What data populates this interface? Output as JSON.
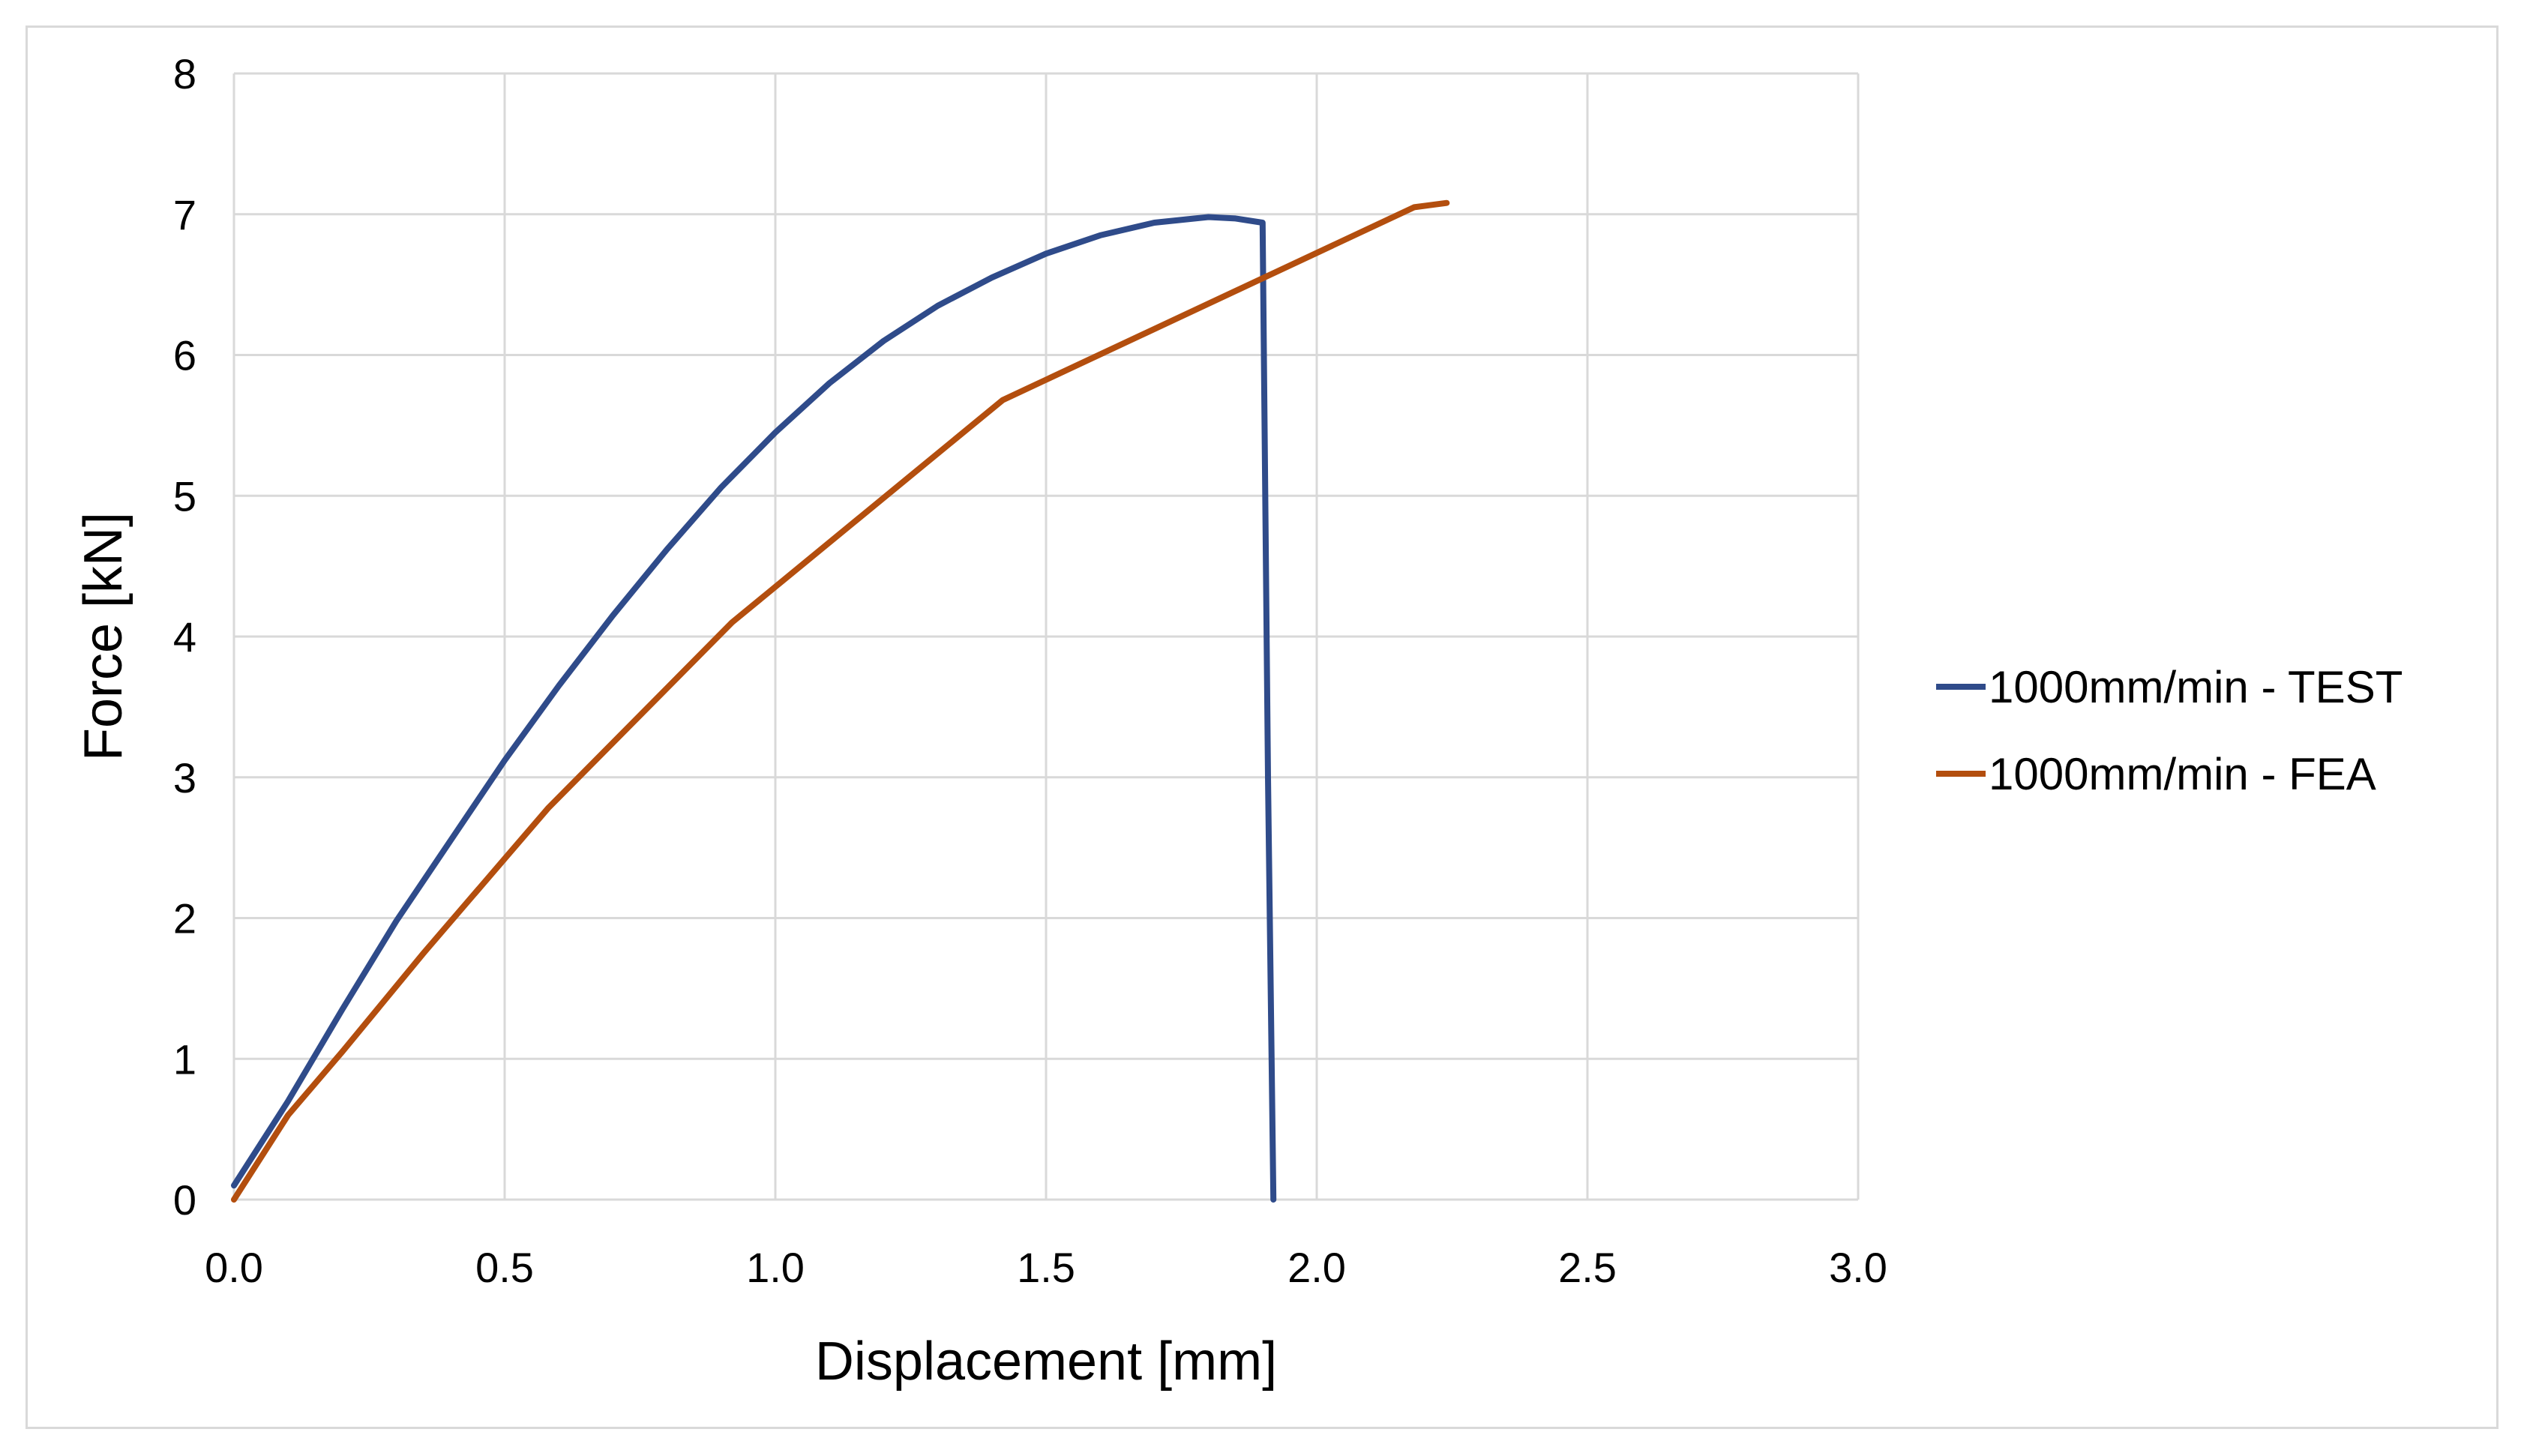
{
  "chart_data": {
    "type": "line",
    "title": "",
    "xlabel": "Displacement [mm]",
    "ylabel": "Force [kN]",
    "xlim": [
      0,
      3.0
    ],
    "ylim": [
      0,
      8
    ],
    "xticks": [
      0.0,
      0.5,
      1.0,
      1.5,
      2.0,
      2.5,
      3.0
    ],
    "xtick_labels": [
      "0.0",
      "0.5",
      "1.0",
      "1.5",
      "2.0",
      "2.5",
      "3.0"
    ],
    "yticks": [
      0,
      1,
      2,
      3,
      4,
      5,
      6,
      7,
      8
    ],
    "ytick_labels": [
      "0",
      "1",
      "2",
      "3",
      "4",
      "5",
      "6",
      "7",
      "8"
    ],
    "grid": true,
    "legend_position": "right",
    "series": [
      {
        "name": "1000mm/min - TEST",
        "color": "#2f4b8a",
        "x": [
          0.0,
          0.1,
          0.2,
          0.3,
          0.4,
          0.5,
          0.6,
          0.7,
          0.8,
          0.9,
          1.0,
          1.1,
          1.2,
          1.3,
          1.4,
          1.5,
          1.6,
          1.7,
          1.8,
          1.85,
          1.9,
          1.91,
          1.92
        ],
        "y": [
          0.1,
          0.7,
          1.35,
          1.98,
          2.55,
          3.12,
          3.65,
          4.15,
          4.62,
          5.06,
          5.45,
          5.8,
          6.1,
          6.35,
          6.55,
          6.72,
          6.85,
          6.94,
          6.98,
          6.97,
          6.94,
          3.0,
          0.0
        ]
      },
      {
        "name": "1000mm/min - FEA",
        "color": "#b34e0e",
        "x": [
          0.0,
          0.1,
          0.2,
          0.35,
          0.58,
          0.92,
          1.42,
          2.18,
          2.24
        ],
        "y": [
          0.0,
          0.6,
          1.05,
          1.75,
          2.78,
          4.1,
          5.68,
          7.05,
          7.08
        ]
      }
    ]
  }
}
